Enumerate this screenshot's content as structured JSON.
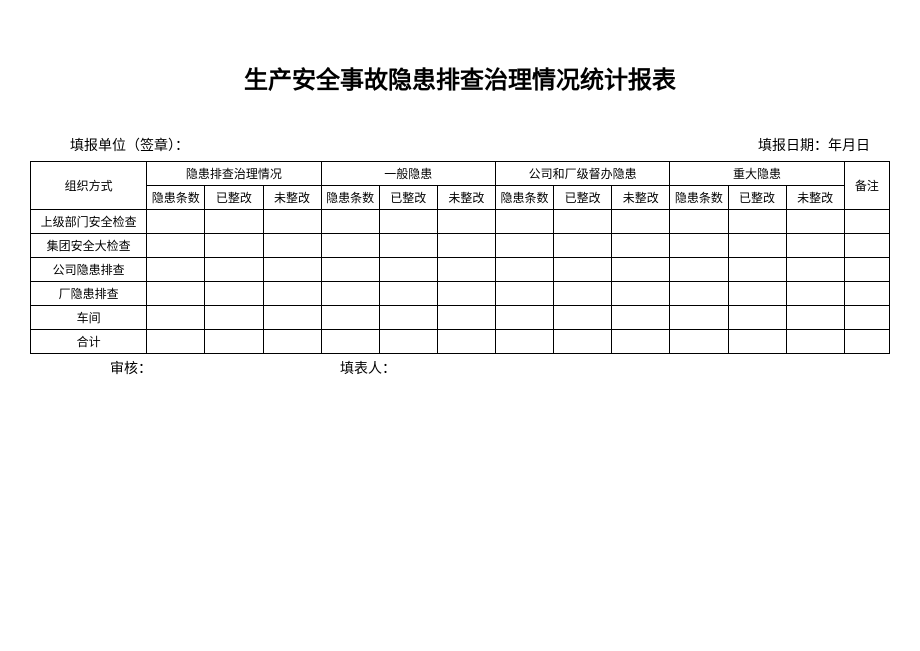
{
  "title": "生产安全事故隐患排查治理情况统计报表",
  "info": {
    "org_label": "填报单位（签章）：",
    "date_label": "填报日期：年月日"
  },
  "table": {
    "header1": {
      "org": "组织方式",
      "g1": "隐患排查治理情况",
      "g2": "一般隐患",
      "g3": "公司和厂级督办隐患",
      "g4": "重大隐患",
      "note": "备注"
    },
    "header2": {
      "c1": "隐患条数",
      "c2": "已整改",
      "c3": "未整改",
      "c4": "隐患条数",
      "c5": "已整改",
      "c6": "未整改",
      "c7": "隐患条数",
      "c8": "已整改",
      "c9": "未整改",
      "c10": "隐患条数",
      "c11": "已整改",
      "c12": "未整改"
    },
    "rows": [
      "上级部门安全检查",
      "集团安全大检查",
      "公司隐患排查",
      "厂隐患排查",
      "车间",
      "合计"
    ]
  },
  "footer": {
    "audit": "审核：",
    "filler": "填表人："
  },
  "style": {
    "border_color": "#000000",
    "background": "#ffffff"
  }
}
